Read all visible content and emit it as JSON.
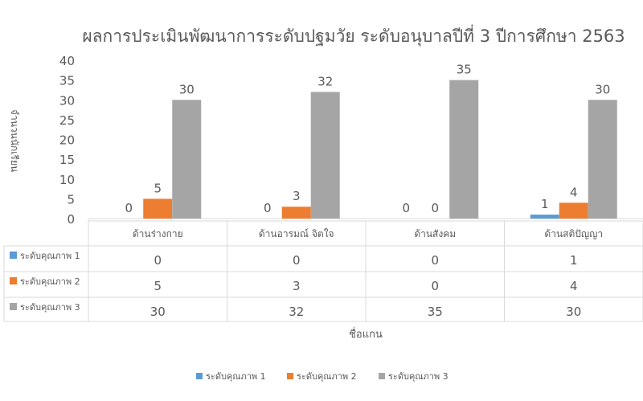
{
  "chart_data": {
    "type": "bar",
    "title": "ผลการประเมินพัฒนาการระดับปฐมวัย  ระดับอนุบาลปีที่ 3 ปีการศึกษา 2563",
    "xlabel": "ชื่อแกน",
    "ylabel": "จำนวนนักเรียน",
    "ylim": [
      0,
      40
    ],
    "yticks": [
      0,
      5,
      10,
      15,
      20,
      25,
      30,
      35,
      40
    ],
    "grid": false,
    "legend": "bottom",
    "data_table": true,
    "categories": [
      "ด้านร่างกาย",
      "ด้านอารมณ์ จิตใจ",
      "ด้านสังคม",
      "ด้านสติปัญญา"
    ],
    "series": [
      {
        "name": "ระดับคุณภาพ 1",
        "color": "#5b9bd5",
        "values": [
          0,
          0,
          0,
          1
        ]
      },
      {
        "name": "ระดับคุณภาพ 2",
        "color": "#ed7d31",
        "values": [
          5,
          3,
          0,
          4
        ]
      },
      {
        "name": "ระดับคุณภาพ 3",
        "color": "#a5a5a5",
        "values": [
          30,
          32,
          35,
          30
        ]
      }
    ]
  }
}
